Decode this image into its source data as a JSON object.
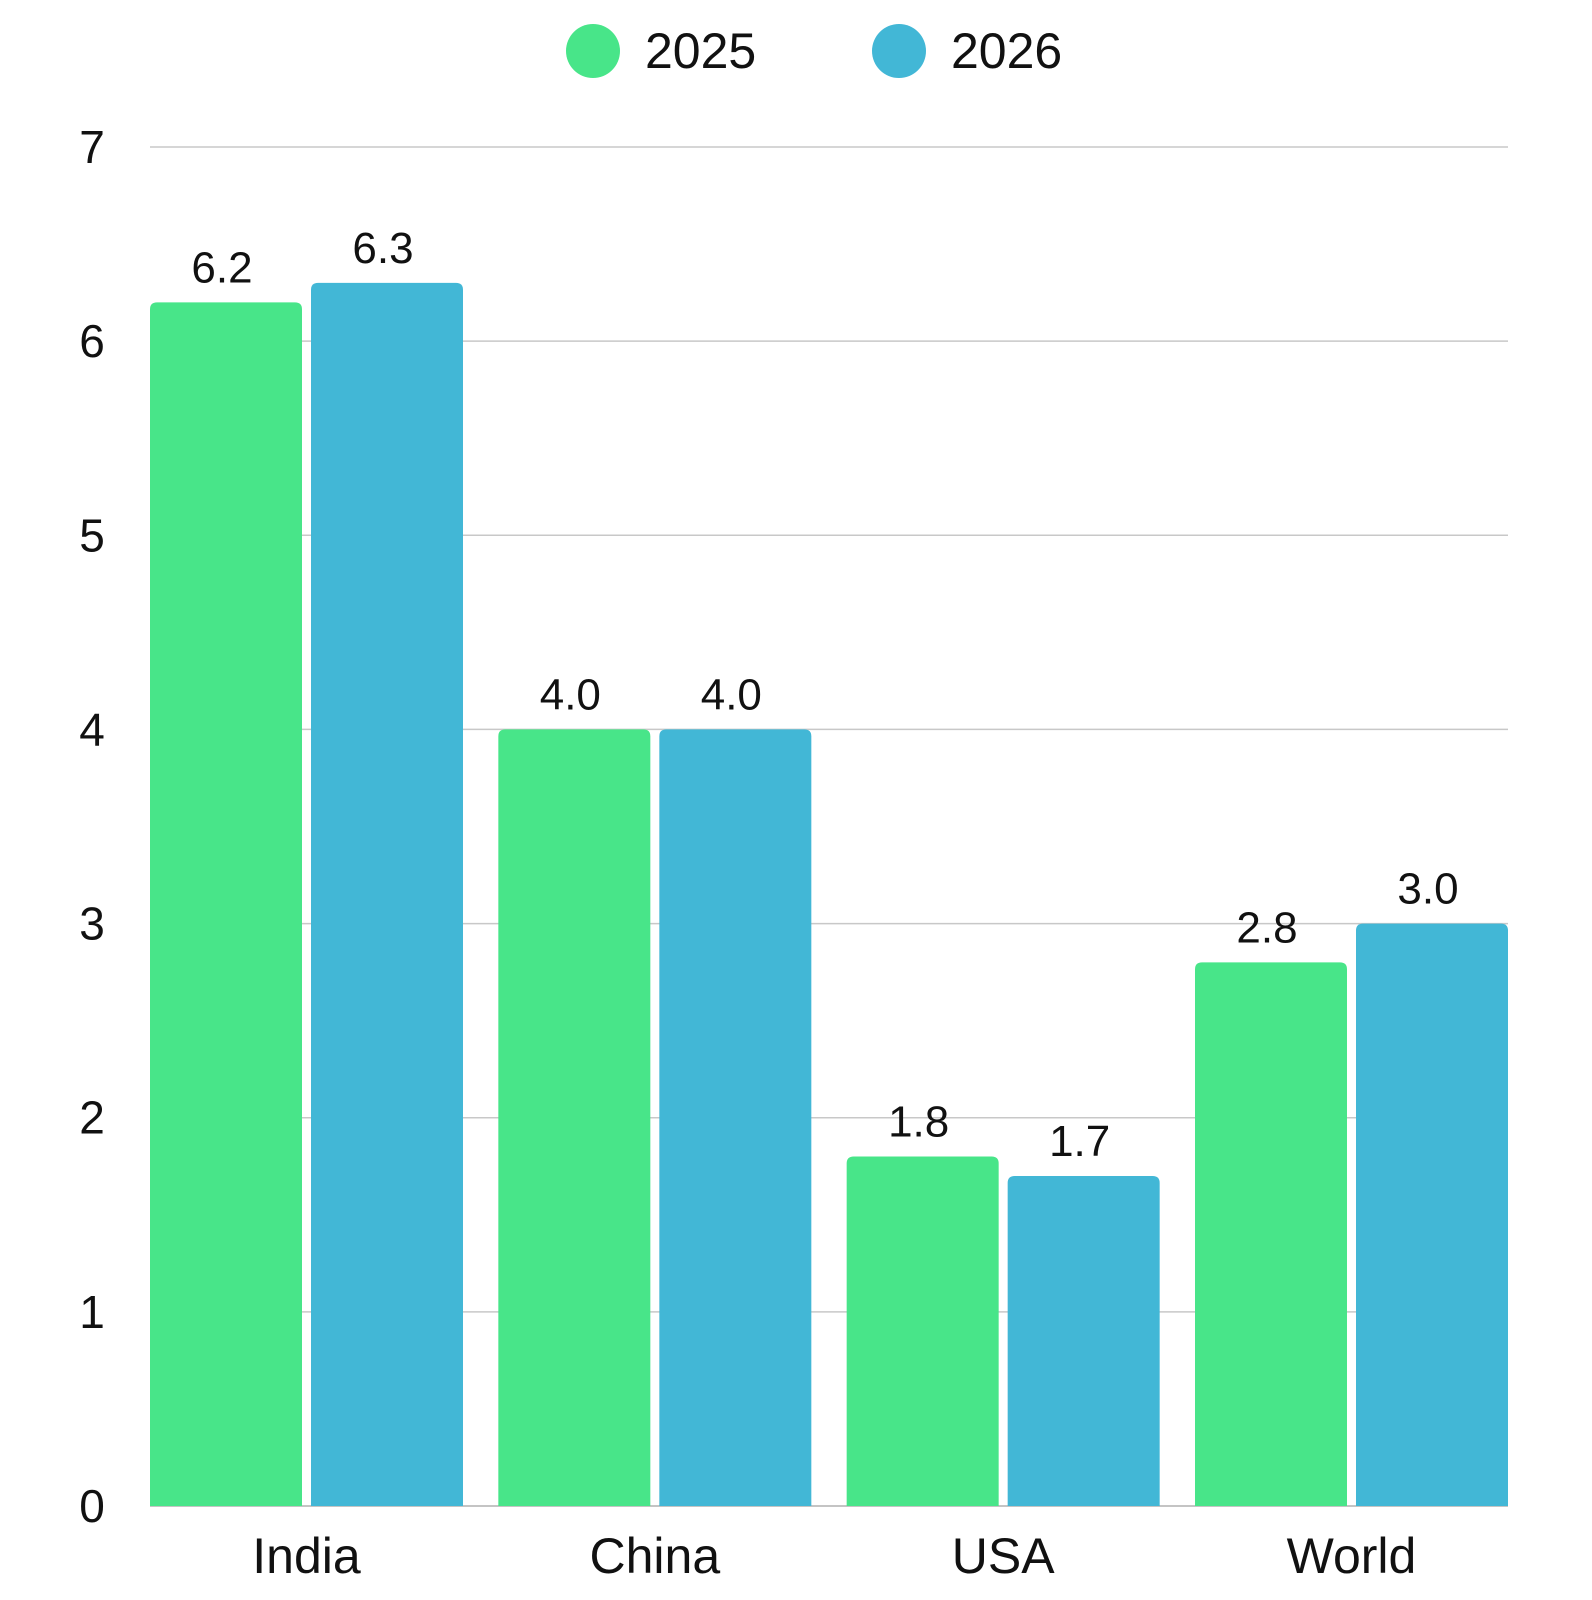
{
  "chart_data": {
    "type": "bar",
    "categories": [
      "India",
      "China",
      "USA",
      "World"
    ],
    "series": [
      {
        "name": "2025",
        "values": [
          6.2,
          4.0,
          1.8,
          2.8
        ],
        "value_labels": [
          "6.2",
          "4.0",
          "1.8",
          "2.8"
        ],
        "color": "#48e589"
      },
      {
        "name": "2026",
        "values": [
          6.3,
          4.0,
          1.7,
          3.0
        ],
        "value_labels": [
          "6.3",
          "4.0",
          "1.7",
          "3.0"
        ],
        "color": "#42b7d6"
      }
    ],
    "y_ticks": [
      "0",
      "1",
      "2",
      "3",
      "4",
      "5",
      "6",
      "7"
    ],
    "ylim": [
      0,
      7
    ],
    "title": "",
    "xlabel": "",
    "ylabel": "",
    "grid": true,
    "legend_position": "top-center"
  }
}
